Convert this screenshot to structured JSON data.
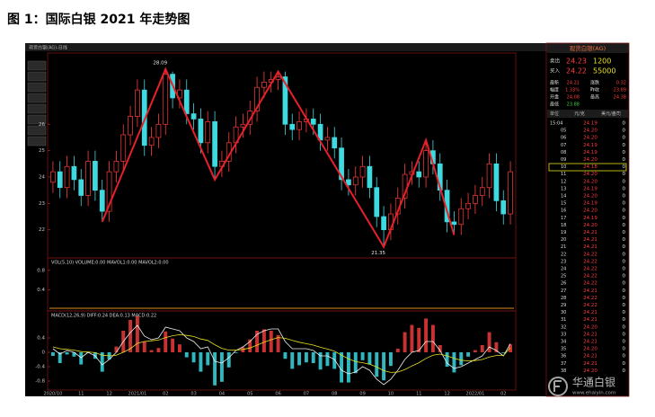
{
  "figure_title": "图 1：国际白银 2021 年走势图",
  "chart_data": {
    "type": "candlestick",
    "title": "现货白银(AG)-日线",
    "categories": [
      "2020/10",
      null,
      null,
      null,
      "11",
      null,
      null,
      null,
      "12",
      null,
      null,
      null,
      "2021/01",
      null,
      null,
      null,
      "02",
      null,
      null,
      null,
      "03",
      null,
      null,
      null,
      "04",
      null,
      null,
      null,
      "05",
      null,
      null,
      null,
      "06",
      null,
      null,
      null,
      "07",
      null,
      null,
      null,
      "08",
      null,
      null,
      null,
      "09",
      null,
      null,
      null,
      "10",
      null,
      null,
      null,
      "11",
      null,
      null,
      null,
      "12",
      null,
      null,
      null,
      "2022/01",
      null,
      null,
      null,
      "02",
      null
    ],
    "open": [
      23.8,
      24.2,
      23.6,
      24.4,
      23.9,
      23.3,
      24.6,
      23.5,
      22.7,
      24.2,
      24.6,
      25.6,
      26.3,
      27.3,
      25.2,
      25.5,
      26.0,
      27.9,
      27.0,
      27.3,
      26.4,
      26.2,
      25.3,
      26.1,
      24.4,
      24.6,
      25.3,
      25.9,
      26.0,
      26.5,
      27.4,
      27.6,
      27.7,
      27.8,
      26.0,
      25.8,
      26.1,
      26.2,
      26.0,
      25.4,
      25.5,
      25.1,
      23.9,
      23.7,
      24.0,
      24.4,
      23.6,
      22.5,
      22.0,
      22.6,
      23.2,
      24.1,
      24.2,
      24.0,
      25.0,
      24.5,
      23.5,
      22.3,
      22.2,
      22.8,
      23.0,
      23.3,
      23.6,
      24.5,
      23.1,
      22.6
    ],
    "high": [
      24.6,
      24.6,
      24.8,
      24.8,
      24.3,
      25.0,
      25.0,
      23.9,
      24.6,
      25.0,
      26.0,
      26.7,
      27.7,
      27.7,
      25.9,
      26.4,
      28.09,
      28.0,
      27.7,
      27.7,
      26.8,
      26.6,
      26.5,
      26.5,
      25.0,
      25.7,
      26.3,
      26.4,
      26.9,
      27.8,
      28.0,
      28.0,
      28.0,
      28.0,
      26.4,
      26.5,
      26.6,
      26.6,
      26.4,
      25.9,
      25.9,
      25.5,
      24.3,
      24.4,
      24.8,
      24.8,
      24.0,
      22.9,
      23.0,
      23.6,
      24.5,
      24.6,
      24.6,
      25.4,
      25.4,
      24.9,
      23.9,
      22.7,
      23.2,
      23.4,
      23.7,
      24.0,
      24.9,
      24.9,
      23.5,
      24.6
    ],
    "low": [
      23.4,
      23.2,
      23.2,
      23.5,
      22.9,
      22.9,
      23.1,
      22.3,
      22.3,
      23.8,
      24.2,
      25.2,
      25.9,
      24.8,
      24.8,
      25.1,
      25.6,
      26.6,
      26.6,
      26.0,
      25.8,
      24.9,
      24.9,
      23.9,
      24.0,
      24.2,
      24.9,
      25.5,
      25.6,
      26.1,
      27.0,
      27.2,
      27.3,
      25.6,
      25.4,
      25.4,
      25.7,
      25.6,
      25.0,
      25.0,
      24.7,
      23.5,
      23.3,
      23.3,
      23.6,
      23.2,
      22.1,
      21.35,
      21.6,
      22.2,
      22.8,
      23.7,
      23.6,
      23.6,
      24.1,
      23.1,
      21.9,
      21.8,
      21.8,
      22.4,
      22.6,
      22.9,
      23.2,
      22.7,
      22.2,
      22.2
    ],
    "close": [
      24.2,
      23.6,
      24.4,
      23.9,
      23.3,
      24.6,
      23.5,
      22.7,
      24.2,
      24.6,
      25.6,
      26.3,
      27.3,
      25.2,
      25.5,
      26.0,
      27.9,
      27.0,
      27.3,
      26.4,
      26.2,
      25.3,
      26.1,
      24.4,
      24.6,
      25.3,
      25.9,
      26.0,
      26.5,
      27.4,
      27.6,
      27.7,
      27.8,
      26.0,
      25.8,
      26.1,
      26.2,
      26.0,
      25.4,
      25.5,
      25.1,
      23.9,
      23.7,
      24.0,
      24.4,
      23.6,
      22.5,
      22.0,
      22.6,
      23.2,
      24.1,
      24.2,
      24.0,
      25.0,
      24.5,
      23.5,
      22.3,
      22.2,
      22.8,
      23.0,
      23.3,
      23.6,
      24.5,
      23.1,
      22.6,
      24.2
    ],
    "colors": {
      "up": "#ff3c3c",
      "down": "#3fd9e0"
    },
    "ylim": [
      21.0,
      28.6
    ],
    "yticks": [
      22,
      23,
      24,
      25,
      26
    ],
    "trend_line": {
      "color": "#e8202a",
      "x": [
        7,
        16,
        23,
        32,
        47,
        53,
        57
      ],
      "y": [
        22.3,
        28.09,
        23.9,
        28.0,
        21.35,
        25.4,
        21.8
      ],
      "value_labels": [
        null,
        "28.09",
        null,
        null,
        "21.35",
        null,
        null
      ]
    },
    "volume": {
      "label": "VOL(5,10) VOLUME:0.00 MAVOL1:0.00 MAVOL2:0.00",
      "ylim": [
        0,
        1
      ],
      "yticks": [
        0.4,
        0.8
      ]
    },
    "macd": {
      "label": "MACD(12,26,9) DIFF:0.24 DEA:0.13 MACD:0.22",
      "ylim": [
        -1.0,
        1.0
      ],
      "yticks": [
        -0.8,
        -0.4,
        0,
        0.4
      ],
      "diff_color": "#f0f0f0",
      "dea_color": "#e8e020",
      "diff": [
        0.1,
        -0.05,
        0.05,
        0.0,
        -0.15,
        0.0,
        -0.1,
        -0.35,
        -0.2,
        0.0,
        0.3,
        0.55,
        0.75,
        0.45,
        0.35,
        0.4,
        0.7,
        0.65,
        0.6,
        0.4,
        0.3,
        0.1,
        0.15,
        -0.25,
        -0.3,
        -0.15,
        0.05,
        0.15,
        0.3,
        0.5,
        0.6,
        0.65,
        0.65,
        0.3,
        0.1,
        0.1,
        0.1,
        0.05,
        -0.1,
        -0.1,
        -0.2,
        -0.5,
        -0.6,
        -0.55,
        -0.4,
        -0.5,
        -0.75,
        -0.9,
        -0.75,
        -0.5,
        -0.2,
        0.0,
        0.05,
        0.3,
        0.3,
        0.05,
        -0.3,
        -0.45,
        -0.4,
        -0.3,
        -0.2,
        -0.1,
        0.15,
        0.05,
        -0.1,
        0.24
      ],
      "dea": [
        0.15,
        0.1,
        0.08,
        0.06,
        0.02,
        0.01,
        -0.01,
        -0.08,
        -0.1,
        -0.08,
        0.0,
        0.1,
        0.25,
        0.3,
        0.32,
        0.34,
        0.41,
        0.46,
        0.49,
        0.47,
        0.44,
        0.37,
        0.33,
        0.21,
        0.11,
        0.06,
        0.06,
        0.08,
        0.12,
        0.2,
        0.28,
        0.35,
        0.41,
        0.39,
        0.33,
        0.28,
        0.24,
        0.2,
        0.14,
        0.09,
        0.03,
        -0.08,
        -0.18,
        -0.26,
        -0.29,
        -0.33,
        -0.41,
        -0.51,
        -0.56,
        -0.55,
        -0.48,
        -0.38,
        -0.29,
        -0.17,
        -0.08,
        -0.05,
        -0.1,
        -0.17,
        -0.22,
        -0.24,
        -0.23,
        -0.2,
        -0.13,
        -0.09,
        -0.09,
        0.13
      ],
      "macd": [
        -0.1,
        -0.3,
        -0.06,
        -0.12,
        -0.34,
        -0.02,
        -0.18,
        -0.54,
        -0.2,
        0.16,
        0.6,
        0.9,
        1.0,
        0.3,
        0.06,
        0.12,
        0.58,
        0.38,
        0.22,
        -0.14,
        -0.28,
        -0.54,
        -0.36,
        -0.92,
        -0.82,
        -0.42,
        -0.02,
        0.14,
        0.36,
        0.6,
        0.64,
        0.6,
        0.48,
        -0.18,
        -0.46,
        -0.36,
        -0.28,
        -0.3,
        -0.48,
        -0.38,
        -0.46,
        -0.84,
        -0.84,
        -0.58,
        -0.22,
        -0.34,
        -0.68,
        -0.78,
        -0.38,
        0.1,
        0.56,
        0.76,
        0.68,
        0.94,
        0.76,
        0.2,
        -0.4,
        -0.56,
        -0.36,
        -0.12,
        0.06,
        0.2,
        0.56,
        0.28,
        -0.02,
        0.22
      ]
    }
  },
  "quote_panel": {
    "title": "现货白银(AG)",
    "orders": [
      [
        "卖出",
        "24.23",
        "1200"
      ],
      [
        "买入",
        "24.22",
        "55000"
      ]
    ],
    "stats": [
      [
        "最新",
        "24.21",
        "涨跌",
        "0.32"
      ],
      [
        "幅度",
        "1.33%",
        "昨收",
        "23.89"
      ],
      [
        "开盘",
        "24.08",
        "最高",
        "24.38"
      ],
      [
        "最低",
        "23.88"
      ]
    ],
    "table_header": [
      "单位",
      "元/克",
      "美元/盎司"
    ],
    "ticks": [
      [
        "15:04",
        "24.19",
        "0"
      ],
      [
        "05",
        "24.20",
        "0"
      ],
      [
        "06",
        "24.20",
        "0"
      ],
      [
        "07",
        "24.19",
        "0"
      ],
      [
        "08",
        "24.19",
        "0"
      ],
      [
        "09",
        "24.20",
        "0"
      ],
      [
        "10",
        "24.18",
        "0"
      ],
      [
        "11",
        "24.20",
        "0"
      ],
      [
        "12",
        "24.20",
        "0"
      ],
      [
        "13",
        "24.19",
        "0"
      ],
      [
        "14",
        "24.20",
        "0"
      ],
      [
        "15",
        "24.19",
        "0"
      ],
      [
        "16",
        "24.20",
        "0"
      ],
      [
        "17",
        "24.19",
        "0"
      ],
      [
        "18",
        "24.20",
        "0"
      ],
      [
        "19",
        "24.21",
        "0"
      ],
      [
        "20",
        "24.21",
        "0"
      ],
      [
        "21",
        "24.21",
        "0"
      ],
      [
        "22",
        "24.22",
        "0"
      ],
      [
        "23",
        "24.22",
        "0"
      ],
      [
        "24",
        "24.22",
        "0"
      ],
      [
        "25",
        "24.22",
        "0"
      ],
      [
        "26",
        "24.22",
        "0"
      ],
      [
        "27",
        "24.21",
        "0"
      ],
      [
        "28",
        "24.22",
        "0"
      ],
      [
        "29",
        "24.22",
        "0"
      ],
      [
        "30",
        "24.21",
        "0"
      ],
      [
        "31",
        "24.21",
        "0"
      ],
      [
        "32",
        "24.20",
        "0"
      ],
      [
        "33",
        "24.21",
        "0"
      ],
      [
        "34",
        "24.21",
        "0"
      ],
      [
        "35",
        "24.20",
        "0"
      ],
      [
        "36",
        "24.21",
        "0"
      ],
      [
        "37",
        "24.21",
        "0"
      ],
      [
        "38",
        "24.20",
        "0"
      ]
    ]
  },
  "watermark": {
    "brand": "华通白银",
    "url": "www.ehaiyin.com"
  }
}
